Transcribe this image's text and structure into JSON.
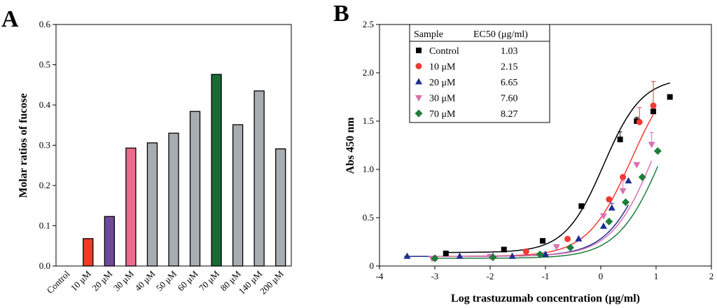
{
  "chart_data": [
    {
      "panel_label": "A",
      "type": "bar",
      "ylabel": "Molar ratios of fucose",
      "xlabel": "",
      "ylim": [
        0,
        0.6
      ],
      "yticks": [
        "0.0",
        "0.1",
        "0.2",
        "0.3",
        "0.4",
        "0.5",
        "0.6"
      ],
      "grid": false,
      "categories": [
        "Control",
        "10 μM",
        "20 μM",
        "30 μM",
        "40 μM",
        "50 μM",
        "60 μM",
        "70 μM",
        "80 μM",
        "140 μM",
        "200 μM"
      ],
      "values": [
        null,
        0.068,
        0.123,
        0.293,
        0.306,
        0.33,
        0.384,
        0.476,
        0.351,
        0.435,
        0.291
      ],
      "colors": [
        "#ffffff",
        "#ef3b24",
        "#6f4a9a",
        "#f06a8e",
        "#a7adb2",
        "#a7adb2",
        "#a7adb2",
        "#1a6a34",
        "#a7adb2",
        "#a7adb2",
        "#a7adb2"
      ]
    },
    {
      "panel_label": "B",
      "type": "scatter",
      "xlabel": "Log trastuzumab concentration (μg/ml)",
      "ylabel": "Abs 450 nm",
      "xlim": [
        -4,
        2
      ],
      "ylim": [
        0,
        2.5
      ],
      "xticks": [
        "-4",
        "-3",
        "-2",
        "-1",
        "0",
        "1",
        "2"
      ],
      "yticks": [
        "0",
        "0.5",
        "1.0",
        "1.5",
        "2.0",
        "2.5"
      ],
      "table_headers": [
        "Sample",
        "EC50 (μg/ml)"
      ],
      "series": [
        {
          "name": "Control",
          "ec50": "1.03",
          "color": "#000000",
          "marker": "square",
          "x": [
            -2.8,
            -1.75,
            -1.05,
            -0.35,
            0.35,
            0.65,
            0.95,
            1.25
          ],
          "y": [
            0.13,
            0.17,
            0.26,
            0.62,
            1.31,
            1.5,
            1.6,
            1.75
          ],
          "err": [
            0,
            0,
            0,
            0,
            0.08,
            0.04,
            0.04,
            0
          ],
          "fit": {
            "bottom": 0.14,
            "top": 1.95,
            "logec50": 0.05,
            "slope": 1.25
          }
        },
        {
          "name": "10 μM",
          "ec50": "2.15",
          "color": "#ef3b36",
          "marker": "circle",
          "x": [
            -3.0,
            -1.35,
            -0.6,
            0.15,
            0.4,
            0.7,
            0.95
          ],
          "y": [
            0.08,
            0.15,
            0.28,
            0.69,
            0.92,
            1.49,
            1.66
          ],
          "err": [
            0,
            0,
            0,
            0,
            0,
            0.15,
            0.25
          ],
          "fit": {
            "bottom": 0.1,
            "top": 2.1,
            "logec50": 0.55,
            "slope": 1.1
          }
        },
        {
          "name": "20 μM",
          "ec50": "6.65",
          "color": "#1b2f8f",
          "marker": "triangle-up",
          "x": [
            -3.5,
            -2.55,
            -1.95,
            -1.6,
            -1.0,
            -0.4,
            0.05,
            0.2,
            0.5
          ],
          "y": [
            0.1,
            0.1,
            0.1,
            0.1,
            0.12,
            0.28,
            0.41,
            0.6,
            0.88
          ],
          "err": [
            0,
            0,
            0,
            0,
            0,
            0,
            0,
            0.05,
            0
          ],
          "fit": {
            "bottom": 0.1,
            "top": 2.3,
            "logec50": 0.95,
            "slope": 1.1
          }
        },
        {
          "name": "30 μM",
          "ec50": "7.60",
          "color": "#dc6fb2",
          "marker": "triangle-down",
          "x": [
            -3.05,
            -2.0,
            -0.8,
            0.05,
            0.4,
            0.65,
            0.92
          ],
          "y": [
            0.08,
            0.1,
            0.2,
            0.52,
            0.78,
            1.05,
            1.26
          ],
          "err": [
            0,
            0,
            0,
            0,
            0.1,
            0,
            0.12
          ],
          "fit": {
            "bottom": 0.1,
            "top": 2.3,
            "logec50": 1.0,
            "slope": 1.1
          }
        },
        {
          "name": "70 μM",
          "ec50": "8.27",
          "color": "#1e7d3c",
          "marker": "diamond",
          "x": [
            -3.0,
            -1.95,
            -1.1,
            -0.55,
            0.15,
            0.45,
            0.75,
            1.03
          ],
          "y": [
            0.08,
            0.09,
            0.12,
            0.19,
            0.46,
            0.66,
            0.92,
            1.19
          ],
          "err": [
            0,
            0,
            0,
            0,
            0,
            0,
            0,
            0
          ],
          "fit": {
            "bottom": 0.08,
            "top": 2.3,
            "logec50": 1.15,
            "slope": 1.05
          }
        }
      ]
    }
  ]
}
